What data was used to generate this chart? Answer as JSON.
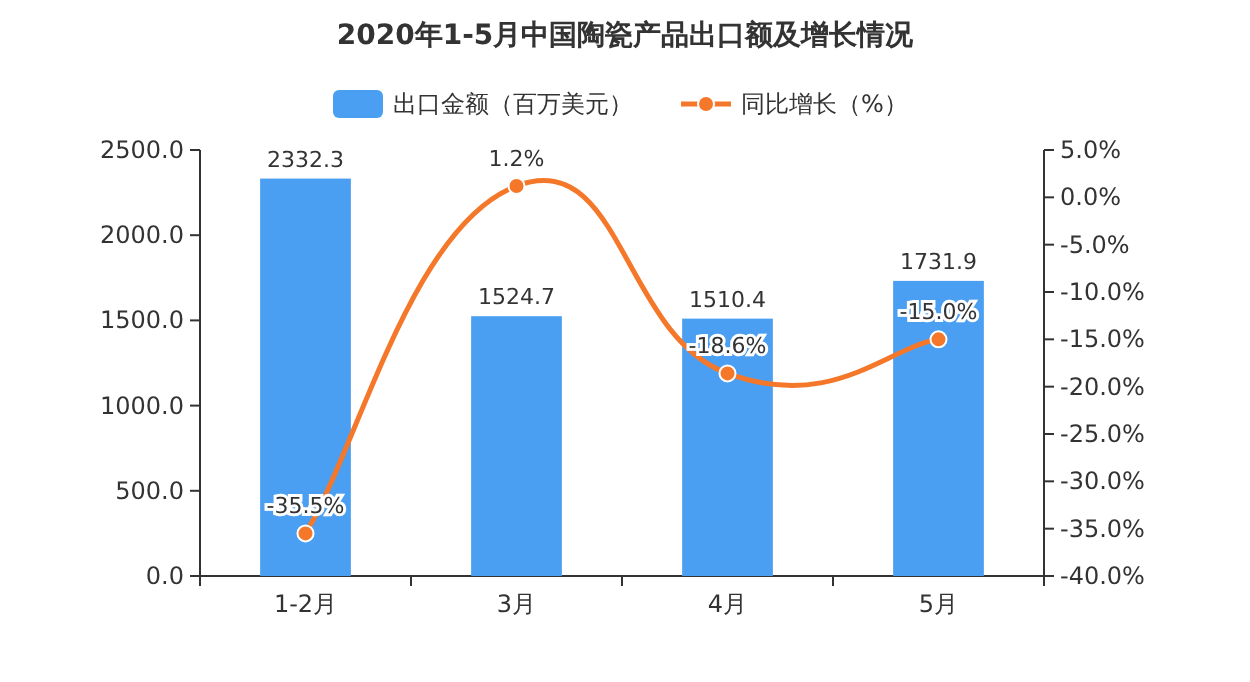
{
  "chart_data": {
    "type": "bar",
    "title": "2020年1-5月中国陶瓷产品出口额及增长情况",
    "categories": [
      "1-2月",
      "3月",
      "4月",
      "5月"
    ],
    "series": [
      {
        "name": "出口金额（百万美元）",
        "color": "#4b9ff2",
        "values": [
          2332.3,
          1524.7,
          1510.4,
          1731.9
        ],
        "value_labels": [
          "2332.3",
          "1524.7",
          "1510.4",
          "1731.9"
        ]
      },
      {
        "name": "同比增长（%）",
        "type": "line",
        "axis": "y2",
        "color": "#f5782a",
        "values": [
          -35.5,
          1.2,
          -18.6,
          -15.0
        ],
        "value_labels": [
          "-35.5%",
          "1.2%",
          "-18.6%",
          "-15.0%"
        ]
      }
    ],
    "ylim": [
      0,
      2500
    ],
    "yticks": [
      {
        "value": 0,
        "label": "0.0"
      },
      {
        "value": 500,
        "label": "500.0"
      },
      {
        "value": 1000,
        "label": "1000.0"
      },
      {
        "value": 1500,
        "label": "1500.0"
      },
      {
        "value": 2000,
        "label": "2000.0"
      },
      {
        "value": 2500,
        "label": "2500.0"
      }
    ],
    "y2lim": [
      -40,
      5
    ],
    "y2ticks": [
      {
        "value": -40,
        "label": "-40.0%"
      },
      {
        "value": -35,
        "label": "-35.0%"
      },
      {
        "value": -30,
        "label": "-30.0%"
      },
      {
        "value": -25,
        "label": "-25.0%"
      },
      {
        "value": -20,
        "label": "-20.0%"
      },
      {
        "value": -15,
        "label": "-15.0%"
      },
      {
        "value": -10,
        "label": "-10.0%"
      },
      {
        "value": -5,
        "label": "-5.0%"
      },
      {
        "value": 0,
        "label": "0.0%"
      },
      {
        "value": 5,
        "label": "5.0%"
      }
    ],
    "marker": "circle",
    "grid": false,
    "legend": "top"
  }
}
